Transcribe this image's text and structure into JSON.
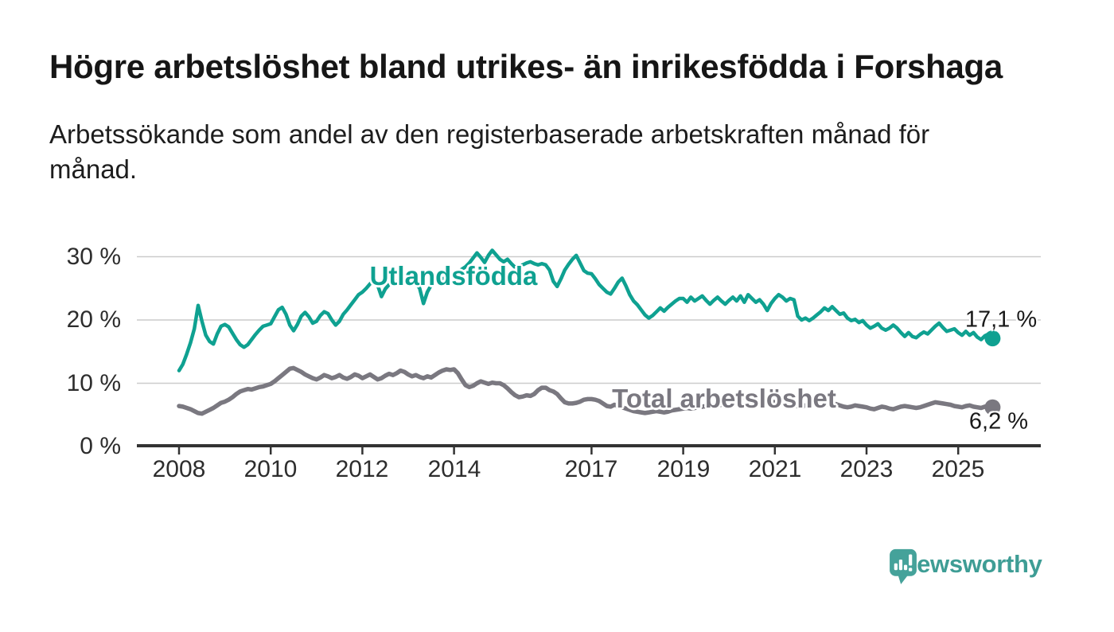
{
  "title": "Högre arbetslöshet bland utrikes- än inrikesfödda i Forshaga",
  "subtitle_lines": [
    "Arbetssökande som andel av den registerbaserade arbetskraften månad för",
    "månad."
  ],
  "branding": {
    "name": "Newsworthy",
    "logo_icon": "speech-bubble-bar-chart-icon",
    "icon_color": "#45a29a",
    "text_color": "#3e9d95"
  },
  "chart_data": {
    "type": "line",
    "title": "Arbetssökande som andel av den registerbaserade arbetskraften månad för månad",
    "x_unit": "month",
    "x_start_year": 2008,
    "x_end_label_year": 2025.75,
    "grid": "horizontal",
    "grid_color": "#cccccc",
    "axis_color": "#333333",
    "tick_label_color": "#2d2d2d",
    "ylim": [
      0,
      31
    ],
    "xlim_years": [
      2007.1,
      2026.8
    ],
    "yticks": {
      "values": [
        0,
        10,
        20,
        30
      ],
      "labels": [
        "0 %",
        "10 %",
        "20 %",
        "30 %"
      ]
    },
    "xticks": {
      "values": [
        2008,
        2010,
        2012,
        2014,
        2017,
        2019,
        2021,
        2023,
        2025
      ],
      "labels": [
        "2008",
        "2010",
        "2012",
        "2014",
        "2017",
        "2019",
        "2021",
        "2023",
        "2025"
      ]
    },
    "series": [
      {
        "name": "Utlandsfödda",
        "color": "#0fa191",
        "end_label": "17,1 %",
        "end_value": 17.1,
        "values": [
          12.0,
          13.0,
          14.6,
          16.4,
          18.6,
          22.3,
          19.8,
          17.6,
          16.6,
          16.2,
          17.8,
          19.0,
          19.3,
          18.9,
          17.9,
          16.9,
          16.1,
          15.7,
          16.1,
          16.9,
          17.7,
          18.4,
          19.0,
          19.2,
          19.4,
          20.5,
          21.6,
          22.0,
          20.9,
          19.2,
          18.3,
          19.3,
          20.6,
          21.2,
          20.5,
          19.5,
          19.8,
          20.7,
          21.3,
          21.0,
          20.0,
          19.2,
          19.8,
          20.9,
          21.6,
          22.4,
          23.2,
          24.0,
          24.4,
          25.0,
          25.7,
          26.3,
          25.5,
          23.7,
          24.9,
          25.6,
          25.9,
          26.1,
          26.0,
          25.9,
          26.0,
          26.2,
          25.8,
          25.0,
          22.6,
          24.4,
          25.5,
          26.0,
          26.2,
          26.5,
          26.7,
          26.9,
          27.1,
          27.5,
          28.0,
          28.4,
          29.0,
          29.8,
          30.6,
          29.9,
          29.1,
          30.2,
          31.0,
          30.3,
          29.6,
          29.2,
          29.6,
          28.9,
          28.3,
          28.5,
          28.7,
          29.0,
          29.2,
          28.9,
          28.7,
          28.9,
          28.7,
          27.9,
          26.1,
          25.3,
          26.5,
          27.9,
          28.8,
          29.6,
          30.2,
          29.0,
          27.8,
          27.4,
          27.3,
          26.5,
          25.6,
          25.0,
          24.4,
          24.1,
          25.0,
          26.0,
          26.6,
          25.4,
          24.0,
          23.0,
          22.4,
          21.6,
          20.8,
          20.3,
          20.7,
          21.3,
          21.9,
          21.4,
          22.0,
          22.5,
          23.0,
          23.4,
          23.4,
          22.8,
          23.6,
          23.0,
          23.4,
          23.8,
          23.1,
          22.5,
          23.1,
          23.6,
          23.0,
          22.5,
          23.1,
          23.6,
          23.0,
          23.8,
          22.8,
          24.0,
          23.4,
          22.8,
          23.2,
          22.5,
          21.5,
          22.6,
          23.4,
          24.0,
          23.6,
          23.0,
          23.4,
          23.2,
          20.6,
          20.0,
          20.3,
          19.9,
          20.3,
          20.8,
          21.3,
          21.9,
          21.5,
          22.1,
          21.5,
          20.9,
          21.1,
          20.3,
          19.9,
          20.1,
          19.6,
          19.9,
          19.2,
          18.7,
          19.0,
          19.4,
          18.7,
          18.4,
          18.7,
          19.2,
          18.7,
          18.0,
          17.4,
          18.0,
          17.4,
          17.2,
          17.7,
          18.1,
          17.8,
          18.4,
          19.0,
          19.5,
          18.8,
          18.2,
          18.4,
          18.6,
          18.0,
          17.6,
          18.2,
          17.6,
          18.0,
          17.3,
          16.9,
          17.5,
          17.8,
          17.1
        ]
      },
      {
        "name": "Total arbetslöshet",
        "color": "#7a7880",
        "end_label": "6,2 %",
        "end_value": 6.2,
        "values": [
          6.4,
          6.3,
          6.1,
          5.9,
          5.6,
          5.3,
          5.2,
          5.5,
          5.8,
          6.1,
          6.5,
          6.9,
          7.1,
          7.4,
          7.8,
          8.3,
          8.7,
          8.9,
          9.1,
          9.0,
          9.2,
          9.4,
          9.5,
          9.7,
          9.9,
          10.3,
          10.8,
          11.3,
          11.8,
          12.3,
          12.4,
          12.1,
          11.8,
          11.4,
          11.1,
          10.8,
          10.6,
          10.9,
          11.3,
          11.1,
          10.8,
          11.0,
          11.3,
          10.9,
          10.7,
          11.0,
          11.4,
          11.2,
          10.8,
          11.1,
          11.4,
          11.0,
          10.6,
          10.8,
          11.2,
          11.5,
          11.3,
          11.6,
          12.0,
          11.8,
          11.4,
          11.1,
          11.3,
          11.0,
          10.8,
          11.1,
          10.9,
          11.3,
          11.7,
          12.0,
          12.2,
          12.1,
          12.2,
          11.6,
          10.6,
          9.7,
          9.4,
          9.6,
          10.0,
          10.3,
          10.1,
          9.9,
          10.1,
          10.0,
          10.0,
          9.7,
          9.2,
          8.6,
          8.1,
          7.8,
          7.9,
          8.1,
          8.0,
          8.3,
          8.9,
          9.3,
          9.3,
          8.9,
          8.7,
          8.3,
          7.6,
          7.0,
          6.8,
          6.8,
          6.9,
          7.1,
          7.4,
          7.5,
          7.5,
          7.4,
          7.2,
          6.8,
          6.4,
          6.3,
          6.6,
          6.4,
          6.2,
          6.0,
          5.8,
          5.6,
          5.5,
          5.4,
          5.3,
          5.4,
          5.5,
          5.6,
          5.5,
          5.4,
          5.5,
          5.7,
          5.8,
          5.9,
          6.0,
          6.1,
          6.0,
          6.1,
          6.2,
          6.3,
          6.4,
          6.3,
          6.4,
          6.5,
          6.6,
          6.7,
          6.8,
          7.0,
          7.4,
          7.7,
          7.8,
          7.7,
          7.6,
          7.5,
          7.4,
          7.3,
          7.2,
          7.1,
          7.0,
          6.9,
          6.8,
          6.7,
          6.6,
          6.5,
          6.4,
          6.4,
          6.5,
          6.6,
          6.7,
          6.8,
          6.7,
          6.6,
          6.7,
          6.8,
          6.7,
          6.5,
          6.3,
          6.2,
          6.3,
          6.5,
          6.4,
          6.3,
          6.2,
          6.0,
          5.9,
          6.1,
          6.3,
          6.2,
          6.0,
          5.9,
          6.1,
          6.3,
          6.4,
          6.3,
          6.2,
          6.1,
          6.2,
          6.4,
          6.6,
          6.8,
          7.0,
          6.9,
          6.8,
          6.7,
          6.6,
          6.4,
          6.3,
          6.2,
          6.4,
          6.5,
          6.3,
          6.2,
          6.1,
          6.3,
          6.4,
          6.2
        ]
      }
    ]
  }
}
